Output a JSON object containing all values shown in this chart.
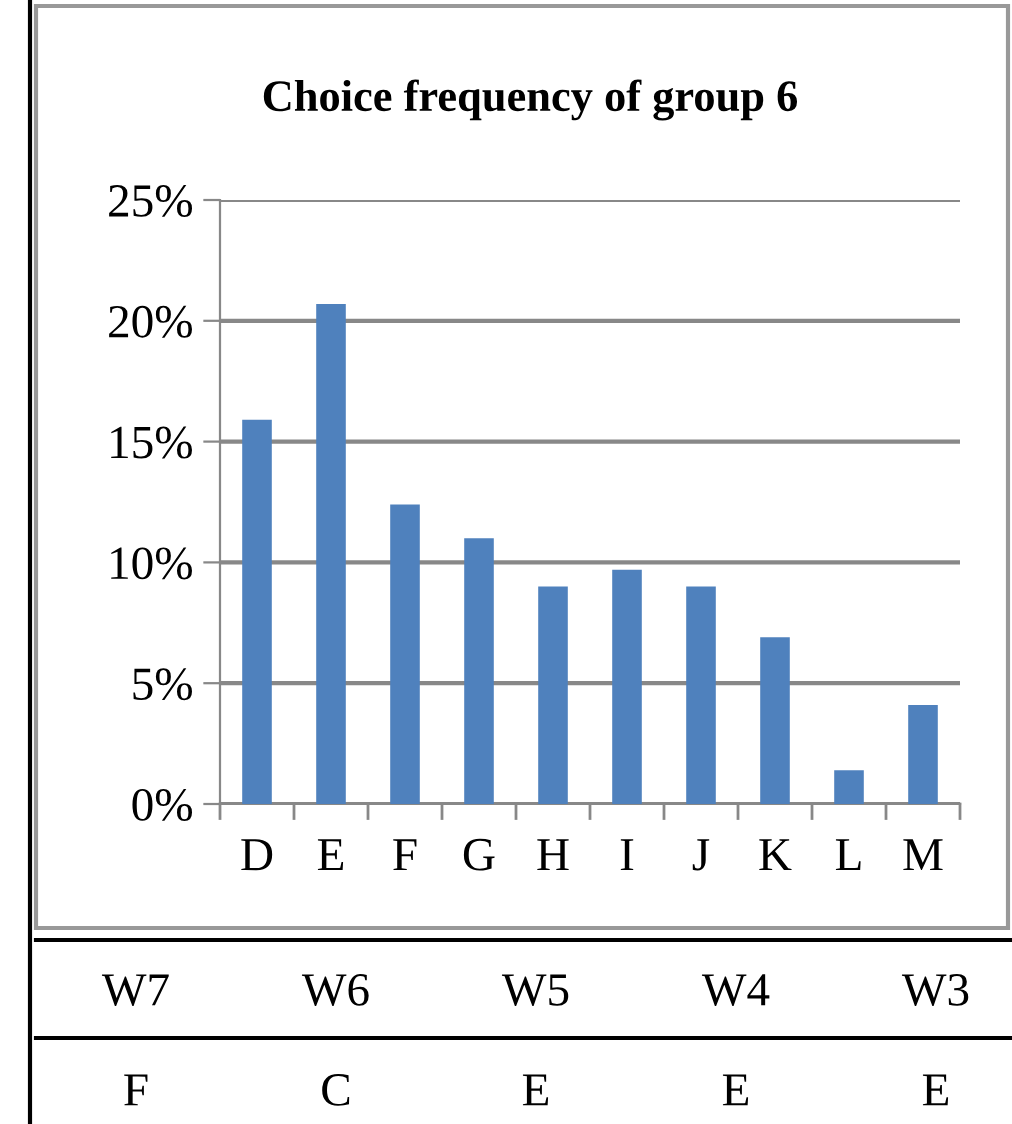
{
  "chart_data": {
    "type": "bar",
    "title": "Choice frequency of group 6",
    "categories": [
      "D",
      "E",
      "F",
      "G",
      "H",
      "I",
      "J",
      "K",
      "L",
      "M"
    ],
    "values": [
      15.9,
      20.7,
      12.4,
      11.0,
      9.0,
      9.7,
      9.0,
      6.9,
      1.4,
      4.1
    ],
    "color": "#4f81bd",
    "ylim": [
      0,
      25
    ],
    "yticks": [
      {
        "value": 0,
        "label": "0%"
      },
      {
        "value": 5,
        "label": "5%"
      },
      {
        "value": 10,
        "label": "10%"
      },
      {
        "value": 15,
        "label": "15%"
      },
      {
        "value": 20,
        "label": "20%"
      },
      {
        "value": 25,
        "label": "25%"
      }
    ],
    "grid": "y",
    "annotations": [
      "W7",
      "W6",
      "W5",
      "W4",
      "W3",
      "F",
      "C",
      "E",
      "E",
      "E"
    ]
  }
}
